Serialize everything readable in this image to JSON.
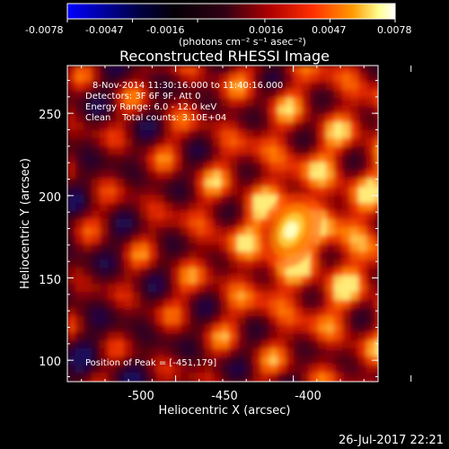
{
  "colorbar": {
    "ticks": [
      "-0.0078",
      "-0.0047",
      "-0.0016",
      "0.0016",
      "0.0047",
      "0.0078"
    ],
    "unit_label": "(photons cm⁻² s⁻¹ asec⁻²)",
    "vmin": -0.0078,
    "vmax": 0.0078
  },
  "chart_data": {
    "type": "heatmap",
    "title": "Reconstructed RHESSI Image",
    "xlabel": "Heliocentric X (arcsec)",
    "ylabel": "Heliocentric Y (arcsec)",
    "xlim": [
      -546,
      -414
    ],
    "ylim": [
      87,
      279
    ],
    "x_ticks": [
      "-500",
      "-450",
      "-400"
    ],
    "y_ticks": [
      "100",
      "150",
      "200",
      "250"
    ],
    "annotations": [
      "8-Nov-2014 11:30:16.000 to 11:40:16.000",
      "Detectors: 3F 6F 9F, Att 0",
      "Energy Range: 6.0 - 12.0 keV",
      "Clean    Total counts: 3.10E+04"
    ],
    "peak_label": "Position of Peak = [-451,179]",
    "peak": {
      "x": -451,
      "y": 179
    },
    "colormap": [
      "#0000ff",
      "#000040",
      "#000000",
      "#400020",
      "#b00000",
      "#ff3000",
      "#ff9000",
      "#ffff80",
      "#ffffff"
    ]
  },
  "footer": {
    "date": "26-Jul-2017 22:21"
  }
}
